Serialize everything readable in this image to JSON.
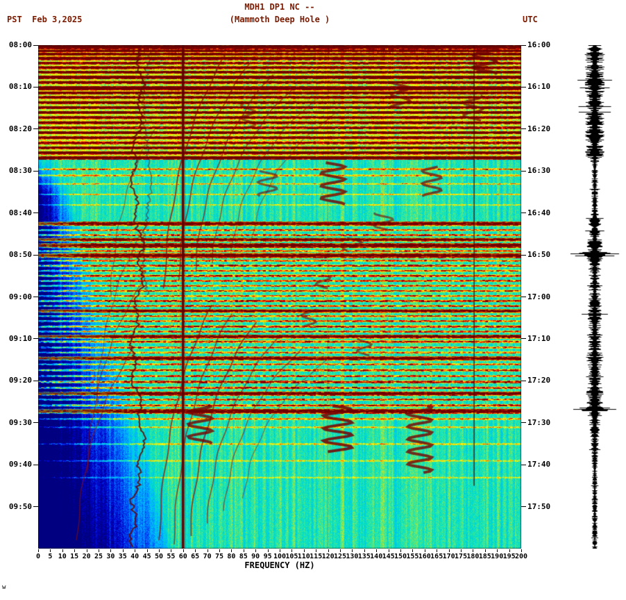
{
  "header": {
    "title_line1": "MDH1 DP1 NC --",
    "title_line2": "(Mammoth Deep Hole )",
    "left_timezone_date": "PST  Feb 3,2025",
    "right_timezone": "UTC"
  },
  "corner_mark": "w",
  "axes": {
    "xlabel": "FREQUENCY (HZ)",
    "x_ticks": [
      0,
      5,
      10,
      15,
      20,
      25,
      30,
      35,
      40,
      45,
      50,
      55,
      60,
      65,
      70,
      75,
      80,
      85,
      90,
      95,
      100,
      105,
      110,
      115,
      120,
      125,
      130,
      135,
      140,
      145,
      150,
      155,
      160,
      165,
      170,
      175,
      180,
      185,
      190,
      195,
      200
    ],
    "left_ticks": [
      "08:00",
      "08:10",
      "08:20",
      "08:30",
      "08:40",
      "08:50",
      "09:00",
      "09:10",
      "09:20",
      "09:30",
      "09:40",
      "09:50"
    ],
    "right_ticks": [
      "16:00",
      "16:10",
      "16:20",
      "16:30",
      "16:40",
      "16:50",
      "17:00",
      "17:10",
      "17:20",
      "17:30",
      "17:40",
      "17:50"
    ]
  },
  "chart_data": {
    "type": "heatmap",
    "title": "MDH1 DP1 NC -- (Mammoth Deep Hole )",
    "station": "MDH1",
    "channel": "DP1",
    "network": "NC",
    "station_name": "Mammoth Deep Hole",
    "date": "Feb 3,2025",
    "xlabel": "FREQUENCY (HZ)",
    "x_range_hz": [
      0,
      200
    ],
    "x_tick_step_hz": 5,
    "time_axis": {
      "left_timezone": "PST",
      "right_timezone": "UTC",
      "start_pst": "08:00",
      "start_utc": "16:00",
      "span_minutes": 120,
      "tick_minutes": 10
    },
    "colormap": [
      [
        0.0,
        "#000080"
      ],
      [
        0.1,
        "#0000CC"
      ],
      [
        0.22,
        "#0066FF"
      ],
      [
        0.32,
        "#00B8FF"
      ],
      [
        0.42,
        "#00E0C8"
      ],
      [
        0.5,
        "#3CE896"
      ],
      [
        0.58,
        "#AAE63C"
      ],
      [
        0.66,
        "#FFFF00"
      ],
      [
        0.76,
        "#FFA000"
      ],
      [
        0.85,
        "#FF3000"
      ],
      [
        0.93,
        "#CC0000"
      ],
      [
        1.0,
        "#7B0000"
      ]
    ],
    "background_level": 0.46,
    "power_line_hz": 60,
    "secondary_vertical_line_hz": 180.5,
    "faint_vertical_line_hz": 120,
    "tremor_band_hz": 41,
    "quiet_wedge": {
      "start_minute": 26,
      "freq_at_end_hz": 55
    },
    "events": [
      [
        0.4,
        0.95,
        0.6
      ],
      [
        1.3,
        0.8,
        0.4
      ],
      [
        2.1,
        0.85,
        0.4
      ],
      [
        3.1,
        0.9,
        0.5
      ],
      [
        4.2,
        0.75,
        0.4
      ],
      [
        5.3,
        0.85,
        0.4
      ],
      [
        6.4,
        0.8,
        0.4
      ],
      [
        7.6,
        0.9,
        0.5
      ],
      [
        8.8,
        0.8,
        0.4
      ],
      [
        10.2,
        0.95,
        0.6
      ],
      [
        11.3,
        0.85,
        0.4
      ],
      [
        12.4,
        0.8,
        0.4
      ],
      [
        13.6,
        0.85,
        0.4
      ],
      [
        14.8,
        0.8,
        0.4
      ],
      [
        16.0,
        0.85,
        0.4
      ],
      [
        17.2,
        0.8,
        0.4
      ],
      [
        18.4,
        0.8,
        0.4
      ],
      [
        19.6,
        0.75,
        0.4
      ],
      [
        20.8,
        0.8,
        0.4
      ],
      [
        22.0,
        0.8,
        0.4
      ],
      [
        23.2,
        0.75,
        0.4
      ],
      [
        24.4,
        0.8,
        0.4
      ],
      [
        25.6,
        0.85,
        0.45
      ],
      [
        26.8,
        0.9,
        0.5
      ],
      [
        29.5,
        0.45,
        0.3
      ],
      [
        31.0,
        0.35,
        0.3
      ],
      [
        33.0,
        0.3,
        0.25
      ],
      [
        35.5,
        0.28,
        0.25
      ],
      [
        38.0,
        0.22,
        0.25
      ],
      [
        42.5,
        0.85,
        0.6
      ],
      [
        44.0,
        0.5,
        0.3
      ],
      [
        45.2,
        0.55,
        0.3
      ],
      [
        46.3,
        0.8,
        0.5
      ],
      [
        47.7,
        0.92,
        0.7
      ],
      [
        49.0,
        0.5,
        0.3
      ],
      [
        50.1,
        0.92,
        0.7
      ],
      [
        51.3,
        0.5,
        0.3
      ],
      [
        52.5,
        0.6,
        0.35
      ],
      [
        53.7,
        0.5,
        0.3
      ],
      [
        54.9,
        0.6,
        0.35
      ],
      [
        56.1,
        0.55,
        0.3
      ],
      [
        57.3,
        0.5,
        0.3
      ],
      [
        58.5,
        0.55,
        0.3
      ],
      [
        59.7,
        0.5,
        0.3
      ],
      [
        60.9,
        0.6,
        0.35
      ],
      [
        62.1,
        0.55,
        0.3
      ],
      [
        63.3,
        0.8,
        0.5
      ],
      [
        64.5,
        0.5,
        0.3
      ],
      [
        65.7,
        0.55,
        0.3
      ],
      [
        67.0,
        0.6,
        0.35
      ],
      [
        68.2,
        0.55,
        0.3
      ],
      [
        69.4,
        0.82,
        0.55
      ],
      [
        70.6,
        0.6,
        0.35
      ],
      [
        72.0,
        0.5,
        0.3
      ],
      [
        73.2,
        0.45,
        0.3
      ],
      [
        74.6,
        0.85,
        0.6
      ],
      [
        76.0,
        0.5,
        0.3
      ],
      [
        77.4,
        0.6,
        0.35
      ],
      [
        78.8,
        0.55,
        0.3
      ],
      [
        80.2,
        0.7,
        0.4
      ],
      [
        81.6,
        0.6,
        0.35
      ],
      [
        83.0,
        0.85,
        0.6
      ],
      [
        84.4,
        0.55,
        0.3
      ],
      [
        85.8,
        0.6,
        0.35
      ],
      [
        87.2,
        0.92,
        0.7
      ],
      [
        89.0,
        0.4,
        0.3
      ],
      [
        91.0,
        0.3,
        0.25
      ],
      [
        95.0,
        0.3,
        0.25
      ],
      [
        99.0,
        0.25,
        0.25
      ],
      [
        103.0,
        0.2,
        0.25
      ]
    ],
    "glide_arcs": [
      [
        50,
        118,
        72,
        62,
        1.8,
        0.75
      ],
      [
        56,
        119,
        80,
        64,
        1.6,
        0.7
      ],
      [
        63,
        117,
        90,
        66,
        1.8,
        0.75
      ],
      [
        70,
        114,
        100,
        69,
        1.6,
        0.65
      ],
      [
        77,
        111,
        110,
        72,
        1.4,
        0.6
      ],
      [
        85,
        108,
        120,
        75,
        1.2,
        0.5
      ],
      [
        52,
        58,
        78,
        2,
        1.8,
        0.8
      ],
      [
        58,
        56,
        88,
        4,
        1.6,
        0.75
      ],
      [
        65,
        54,
        97,
        7,
        1.6,
        0.7
      ],
      [
        72,
        52,
        106,
        10,
        1.4,
        0.65
      ],
      [
        80,
        50,
        115,
        13,
        1.3,
        0.55
      ],
      [
        88,
        48,
        124,
        16,
        1.2,
        0.5
      ],
      [
        16,
        118,
        40,
        72,
        1.5,
        0.6
      ],
      [
        20,
        102,
        44,
        56,
        1.4,
        0.55
      ],
      [
        24,
        86,
        46,
        42,
        1.3,
        0.5
      ],
      [
        30,
        60,
        48,
        20,
        1.3,
        0.5
      ]
    ],
    "squiggles": [
      [
        124,
        86,
        97,
        6,
        4,
        0.85
      ],
      [
        158,
        86,
        102,
        5,
        4,
        0.8
      ],
      [
        67,
        86,
        95,
        5,
        4,
        0.8
      ],
      [
        122,
        28,
        38,
        5,
        4,
        0.8
      ],
      [
        163,
        29,
        36,
        4,
        3.5,
        0.7
      ],
      [
        150,
        9,
        15,
        4,
        3.5,
        0.75
      ],
      [
        185,
        0,
        7,
        5,
        4,
        0.85
      ],
      [
        180,
        12,
        18,
        4,
        3,
        0.7
      ],
      [
        143,
        40,
        44,
        4,
        3,
        0.6
      ],
      [
        130,
        46,
        49,
        4,
        3,
        0.65
      ],
      [
        118,
        55,
        58,
        3,
        3,
        0.6
      ],
      [
        95,
        30,
        36,
        4,
        3,
        0.6
      ],
      [
        87,
        14,
        20,
        3,
        3,
        0.6
      ],
      [
        112,
        63,
        67,
        3,
        3,
        0.6
      ],
      [
        135,
        70,
        74,
        3,
        3,
        0.6
      ]
    ]
  },
  "seismogram": {
    "color": "#000000",
    "amp_profile": [
      [
        0,
        9
      ],
      [
        26,
        9
      ],
      [
        28,
        3
      ],
      [
        40,
        3
      ],
      [
        42,
        7
      ],
      [
        44,
        5
      ],
      [
        46,
        6
      ],
      [
        47.5,
        8
      ],
      [
        49,
        7
      ],
      [
        49.9,
        30
      ],
      [
        50.4,
        8
      ],
      [
        52,
        6
      ],
      [
        56,
        5
      ],
      [
        60,
        6
      ],
      [
        63,
        7
      ],
      [
        66,
        6
      ],
      [
        69,
        7
      ],
      [
        72,
        6
      ],
      [
        74.5,
        8
      ],
      [
        77,
        6
      ],
      [
        80,
        7
      ],
      [
        83,
        8
      ],
      [
        86,
        7
      ],
      [
        86.9,
        24
      ],
      [
        87.5,
        7
      ],
      [
        90,
        5
      ],
      [
        94,
        4
      ],
      [
        98,
        3
      ],
      [
        104,
        2.5
      ],
      [
        120,
        2.5
      ]
    ]
  }
}
